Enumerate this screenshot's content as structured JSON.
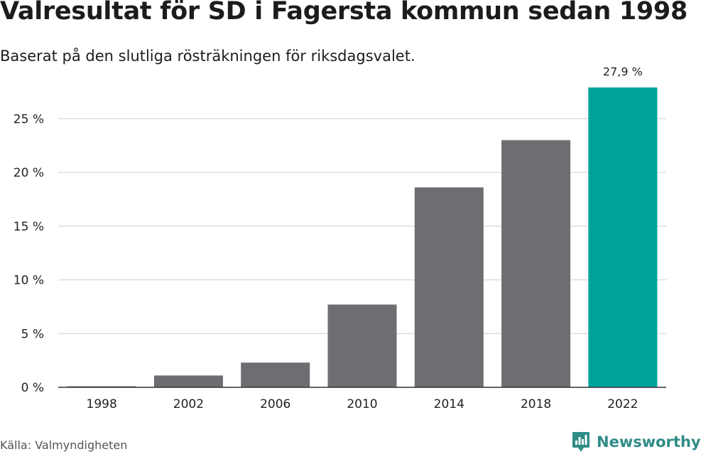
{
  "header": {
    "title": "Valresultat för SD i Fagersta kommun sedan 1998",
    "subtitle": "Baserat på den slutliga rösträkningen för riksdagsvalet."
  },
  "footer": {
    "source": "Källa: Valmyndigheten",
    "brand": "Newsworthy",
    "brand_icon": "newsworthy-logo-icon"
  },
  "colors": {
    "bar": "#6e6d72",
    "highlight": "#00a39a",
    "grid": "#dddddd",
    "axis": "#333333",
    "brand": "#2f8c86"
  },
  "chart_data": {
    "type": "bar",
    "title": "Valresultat för SD i Fagersta kommun sedan 1998",
    "subtitle": "Baserat på den slutliga rösträkningen för riksdagsvalet.",
    "xlabel": "",
    "ylabel": "",
    "categories": [
      "1998",
      "2002",
      "2006",
      "2010",
      "2014",
      "2018",
      "2022"
    ],
    "series": [
      {
        "name": "SD",
        "values": [
          0.1,
          1.1,
          2.3,
          7.7,
          18.6,
          23.0,
          27.9
        ]
      }
    ],
    "ylim": [
      0,
      28
    ],
    "yticks": [
      0,
      5,
      10,
      15,
      20,
      25
    ],
    "ytick_labels": [
      "0 %",
      "5 %",
      "10 %",
      "15 %",
      "20 %",
      "25 %"
    ],
    "grid": true,
    "highlight_category": "2022",
    "data_labels": [
      {
        "category": "2022",
        "text": "27,9 %"
      }
    ]
  }
}
